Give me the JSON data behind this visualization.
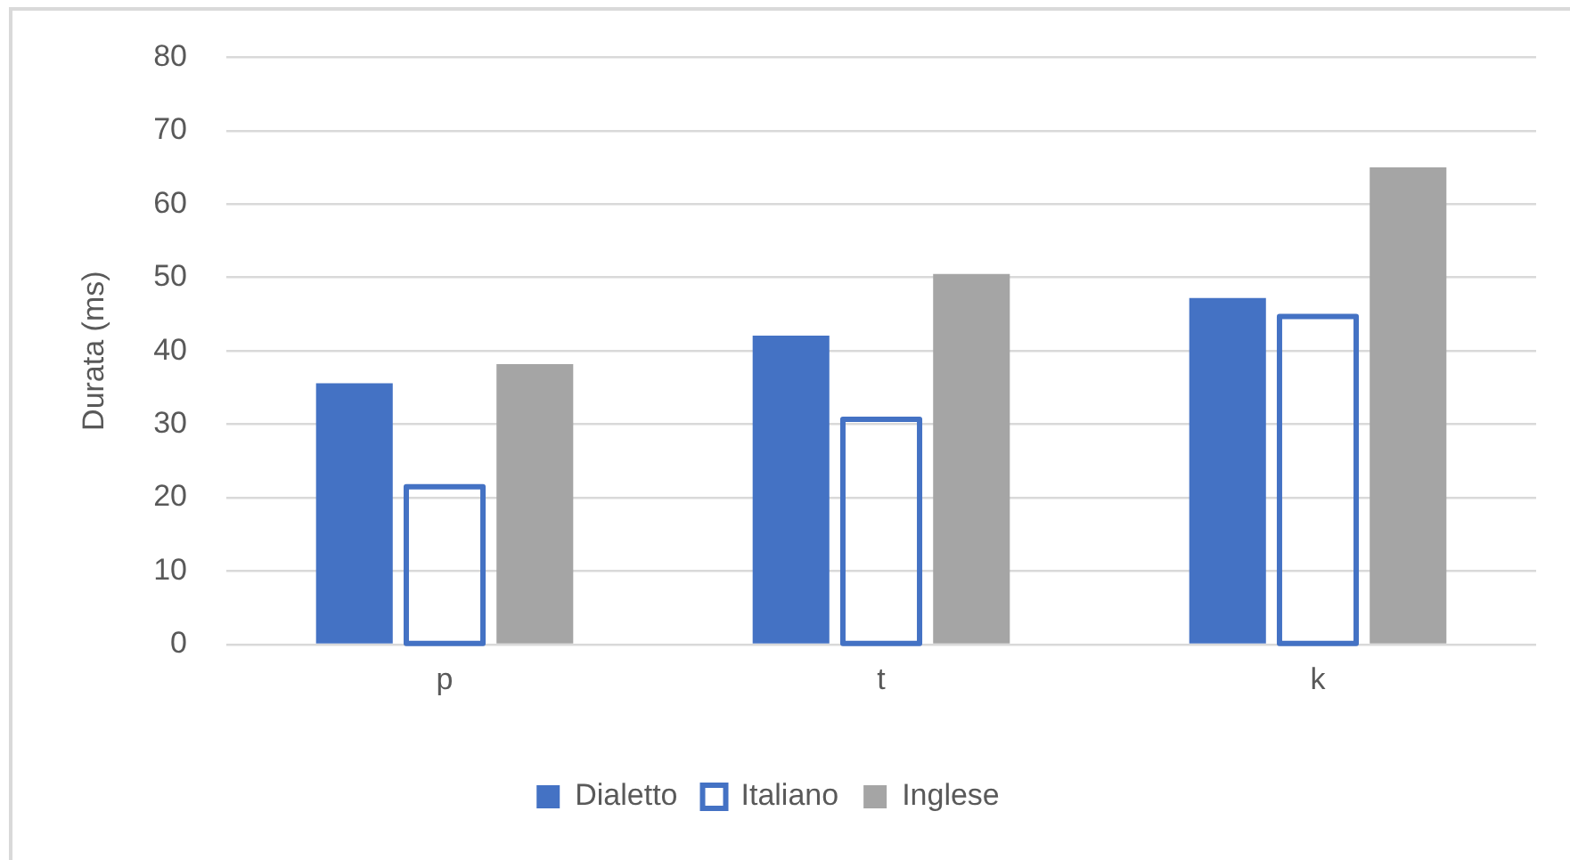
{
  "chart_data": {
    "type": "bar",
    "ylabel": "Durata (ms)",
    "categories": [
      "p",
      "t",
      "k"
    ],
    "series": [
      {
        "name": "Dialetto",
        "color": "#4472c4",
        "values": [
          35.6,
          42.1,
          47.2
        ]
      },
      {
        "name": "Italiano",
        "color": "#4472c4",
        "line_style": "solid",
        "values": [
          21.5,
          30.7,
          44.7
        ]
      },
      {
        "name": "Inglese",
        "color": "#a5a5a5",
        "values": [
          38.2,
          50.5,
          65.0
        ]
      }
    ],
    "ylim": [
      0,
      80
    ],
    "yticks": [
      0,
      10,
      20,
      30,
      40,
      50,
      60,
      70,
      80
    ],
    "grid": "y",
    "legend": "bottom"
  }
}
